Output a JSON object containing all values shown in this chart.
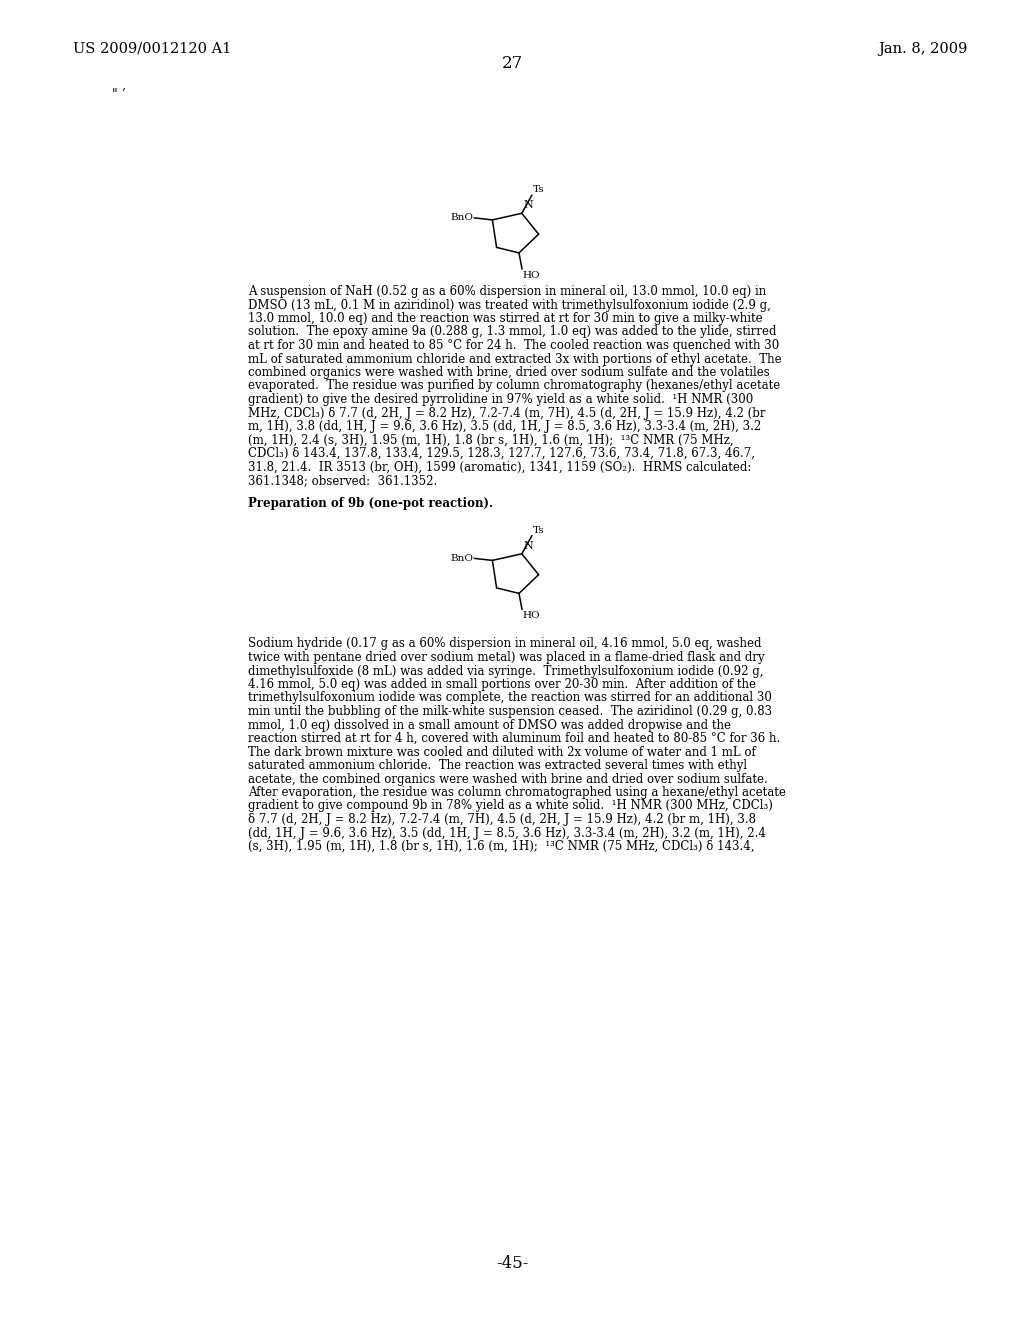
{
  "background_color": "#ffffff",
  "header_left": "US 2009/0012120 A1",
  "header_right": "Jan. 8, 2009",
  "page_number_top": "27",
  "page_number_bottom": "-45-",
  "body_fontsize": 8.5,
  "header_fontsize": 10.5,
  "page_num_fontsize": 12,
  "para1_lines": [
    "A suspension of NaH (0.52 g as a 60% dispersion in mineral oil, 13.0 mmol, 10.0 eq) in",
    "DMSO (13 mL, 0.1 M in aziridinol) was treated with trimethylsulfoxonium iodide (2.9 g,",
    "13.0 mmol, 10.0 eq) and the reaction was stirred at rt for 30 min to give a milky-white",
    "solution.  The epoxy amine 9a (0.288 g, 1.3 mmol, 1.0 eq) was added to the ylide, stirred",
    "at rt for 30 min and heated to 85 °C for 24 h.  The cooled reaction was quenched with 30",
    "mL of saturated ammonium chloride and extracted 3x with portions of ethyl acetate.  The",
    "combined organics were washed with brine, dried over sodium sulfate and the volatiles",
    "evaporated.  The residue was purified by column chromatography (hexanes/ethyl acetate",
    "gradient) to give the desired pyrrolidine in 97% yield as a white solid.  ¹H NMR (300",
    "MHz, CDCl₃) δ 7.7 (d, 2H, J = 8.2 Hz), 7.2-7.4 (m, 7H), 4.5 (d, 2H, J = 15.9 Hz), 4.2 (br",
    "m, 1H), 3.8 (dd, 1H, J = 9.6, 3.6 Hz), 3.5 (dd, 1H, J = 8.5, 3.6 Hz), 3.3-3.4 (m, 2H), 3.2",
    "(m, 1H), 2.4 (s, 3H), 1.95 (m, 1H), 1.8 (br s, 1H), 1.6 (m, 1H);  ¹³C NMR (75 MHz,",
    "CDCl₃) δ 143.4, 137.8, 133.4, 129.5, 128.3, 127.7, 127.6, 73.6, 73.4, 71.8, 67.3, 46.7,",
    "31.8, 21.4.  IR 3513 (br, OH), 1599 (aromatic), 1341, 1159 (SO₂).  HRMS calculated:",
    "361.1348; observed:  361.1352."
  ],
  "preparation_heading": "Preparation of 9b (one-pot reaction).",
  "para2_lines": [
    "Sodium hydride (0.17 g as a 60% dispersion in mineral oil, 4.16 mmol, 5.0 eq, washed",
    "twice with pentane dried over sodium metal) was placed in a flame-dried flask and dry",
    "dimethylsulfoxide (8 mL) was added via syringe.  Trimethylsulfoxonium iodide (0.92 g,",
    "4.16 mmol, 5.0 eq) was added in small portions over 20-30 min.  After addition of the",
    "trimethylsulfoxonium iodide was complete, the reaction was stirred for an additional 30",
    "min until the bubbling of the milk-white suspension ceased.  The aziridinol (0.29 g, 0.83",
    "mmol, 1.0 eq) dissolved in a small amount of DMSO was added dropwise and the",
    "reaction stirred at rt for 4 h, covered with aluminum foil and heated to 80-85 °C for 36 h.",
    "The dark brown mixture was cooled and diluted with 2x volume of water and 1 mL of",
    "saturated ammonium chloride.  The reaction was extracted several times with ethyl",
    "acetate, the combined organics were washed with brine and dried over sodium sulfate.",
    "After evaporation, the residue was column chromatographed using a hexane/ethyl acetate",
    "gradient to give compound 9b in 78% yield as a white solid.  ¹H NMR (300 MHz, CDCl₃)",
    "δ 7.7 (d, 2H, J = 8.2 Hz), 7.2-7.4 (m, 7H), 4.5 (d, 2H, J = 15.9 Hz), 4.2 (br m, 1H), 3.8",
    "(dd, 1H, J = 9.6, 3.6 Hz), 3.5 (dd, 1H, J = 8.5, 3.6 Hz), 3.3-3.4 (m, 2H), 3.2 (m, 1H), 2.4",
    "(s, 3H), 1.95 (m, 1H), 1.8 (br s, 1H), 1.6 (m, 1H);  ¹³C NMR (75 MHz, CDCl₃) δ 143.4,"
  ]
}
